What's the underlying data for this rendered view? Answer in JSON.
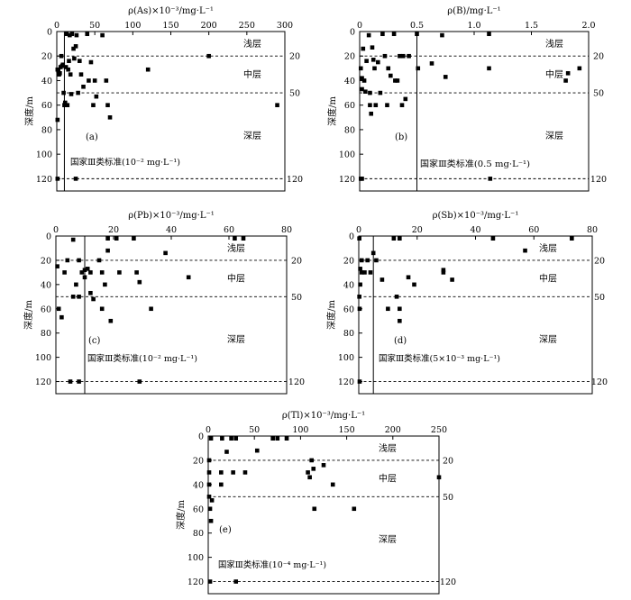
{
  "chart_data": [
    {
      "type": "scatter",
      "id": "a",
      "panel_label": "(a)",
      "xlabel": "ρ(As)×10⁻³/mg·L⁻¹",
      "ylabel": "深度/m",
      "xlim": [
        0,
        300
      ],
      "ylim": [
        0,
        130
      ],
      "xticks": [
        "0",
        "50",
        "100",
        "150",
        "200",
        "250",
        "300"
      ],
      "xtick_values": [
        0,
        50,
        100,
        150,
        200,
        250,
        300
      ],
      "yticks": [
        "0",
        "20",
        "40",
        "60",
        "80",
        "100",
        "120"
      ],
      "ytick_values": [
        0,
        20,
        40,
        60,
        80,
        100,
        120
      ],
      "y_inverted": true,
      "zone_lines": [
        20,
        50,
        120
      ],
      "zone_line_labels": [
        "20",
        "50",
        "120"
      ],
      "zones": [
        "浅层",
        "中层",
        "深层"
      ],
      "standard_x": 10,
      "standard_label": "国家Ⅲ类标准(10⁻² mg·L⁻¹)",
      "points": [
        [
          1,
          31
        ],
        [
          2,
          32
        ],
        [
          3,
          35
        ],
        [
          4,
          34
        ],
        [
          5,
          29
        ],
        [
          6,
          20
        ],
        [
          7,
          28
        ],
        [
          8,
          27
        ],
        [
          9,
          50
        ],
        [
          10,
          60
        ],
        [
          11,
          58
        ],
        [
          12,
          29
        ],
        [
          13,
          2
        ],
        [
          14,
          60
        ],
        [
          15,
          31
        ],
        [
          16,
          24
        ],
        [
          17,
          3
        ],
        [
          18,
          35
        ],
        [
          19,
          51
        ],
        [
          20,
          2
        ],
        [
          22,
          14
        ],
        [
          23,
          22
        ],
        [
          25,
          12
        ],
        [
          26,
          3
        ],
        [
          28,
          50
        ],
        [
          30,
          24
        ],
        [
          32,
          35
        ],
        [
          35,
          45
        ],
        [
          40,
          2
        ],
        [
          42,
          40
        ],
        [
          45,
          25
        ],
        [
          48,
          60
        ],
        [
          50,
          40
        ],
        [
          52,
          53
        ],
        [
          60,
          3
        ],
        [
          65,
          40
        ],
        [
          67,
          60
        ],
        [
          70,
          70
        ],
        [
          120,
          31
        ],
        [
          200,
          20
        ],
        [
          290,
          60
        ],
        [
          1,
          72
        ],
        [
          1,
          120
        ],
        [
          25,
          120
        ]
      ]
    },
    {
      "type": "scatter",
      "id": "b",
      "panel_label": "(b)",
      "xlabel": "ρ(B)/mg·L⁻¹",
      "ylabel": "深度/m",
      "xlim": [
        0,
        2.0
      ],
      "ylim": [
        0,
        130
      ],
      "xticks": [
        "0",
        "0.5",
        "1.0",
        "1.5",
        "2.0"
      ],
      "xtick_values": [
        0,
        0.5,
        1.0,
        1.5,
        2.0
      ],
      "yticks": [
        "0",
        "20",
        "40",
        "60",
        "80",
        "100",
        "120"
      ],
      "ytick_values": [
        0,
        20,
        40,
        60,
        80,
        100,
        120
      ],
      "y_inverted": true,
      "zone_lines": [
        20,
        50,
        120
      ],
      "zone_line_labels": [
        "20",
        "50",
        "120"
      ],
      "zones": [
        "浅层",
        "中层",
        "深层"
      ],
      "standard_x": 0.5,
      "standard_label": "国家Ⅲ类标准(0.5 mg·L⁻¹)",
      "points": [
        [
          0.01,
          30
        ],
        [
          0.02,
          38
        ],
        [
          0.02,
          47
        ],
        [
          0.03,
          14
        ],
        [
          0.04,
          40
        ],
        [
          0.05,
          49
        ],
        [
          0.06,
          24
        ],
        [
          0.08,
          3
        ],
        [
          0.09,
          50
        ],
        [
          0.09,
          60
        ],
        [
          0.1,
          67
        ],
        [
          0.11,
          13
        ],
        [
          0.12,
          23
        ],
        [
          0.13,
          30
        ],
        [
          0.14,
          60
        ],
        [
          0.16,
          25
        ],
        [
          0.18,
          50
        ],
        [
          0.2,
          2
        ],
        [
          0.22,
          20
        ],
        [
          0.24,
          60
        ],
        [
          0.25,
          30
        ],
        [
          0.27,
          36
        ],
        [
          0.3,
          2
        ],
        [
          0.31,
          40
        ],
        [
          0.33,
          40
        ],
        [
          0.35,
          20
        ],
        [
          0.37,
          60
        ],
        [
          0.38,
          20
        ],
        [
          0.4,
          55
        ],
        [
          0.43,
          20
        ],
        [
          0.5,
          2
        ],
        [
          0.51,
          30
        ],
        [
          0.63,
          26
        ],
        [
          0.72,
          3
        ],
        [
          0.75,
          37
        ],
        [
          1.13,
          2
        ],
        [
          1.13,
          30
        ],
        [
          1.8,
          40
        ],
        [
          1.82,
          34
        ],
        [
          1.92,
          30
        ],
        [
          0.01,
          120
        ],
        [
          0.02,
          120
        ],
        [
          1.14,
          120
        ]
      ]
    },
    {
      "type": "scatter",
      "id": "c",
      "panel_label": "(c)",
      "xlabel": "ρ(Pb)×10⁻³/mg·L⁻¹",
      "ylabel": "深度/m",
      "xlim": [
        0,
        80
      ],
      "ylim": [
        0,
        130
      ],
      "xticks": [
        "0",
        "20",
        "40",
        "60",
        "80"
      ],
      "xtick_values": [
        0,
        20,
        40,
        60,
        80
      ],
      "yticks": [
        "0",
        "20",
        "40",
        "60",
        "80",
        "100",
        "120"
      ],
      "ytick_values": [
        0,
        20,
        40,
        60,
        80,
        100,
        120
      ],
      "y_inverted": true,
      "zone_lines": [
        20,
        50,
        120
      ],
      "zone_line_labels": [
        "20",
        "50",
        "120"
      ],
      "zones": [
        "浅层",
        "中层",
        "深层"
      ],
      "standard_x": 10,
      "standard_label": "国家Ⅲ类标准(10⁻² mg·L⁻¹)",
      "points": [
        [
          0.5,
          25
        ],
        [
          1,
          60
        ],
        [
          2,
          67
        ],
        [
          3,
          30
        ],
        [
          4,
          20
        ],
        [
          6,
          3
        ],
        [
          6,
          50
        ],
        [
          7,
          40
        ],
        [
          8,
          20
        ],
        [
          8,
          50
        ],
        [
          9,
          30
        ],
        [
          10,
          28
        ],
        [
          10,
          34
        ],
        [
          11,
          27
        ],
        [
          12,
          30
        ],
        [
          12,
          47
        ],
        [
          13,
          52
        ],
        [
          15,
          20
        ],
        [
          16,
          30
        ],
        [
          16,
          60
        ],
        [
          17,
          40
        ],
        [
          18,
          2
        ],
        [
          18,
          12
        ],
        [
          19,
          70
        ],
        [
          21,
          2
        ],
        [
          22,
          30
        ],
        [
          27,
          2
        ],
        [
          28,
          30
        ],
        [
          29,
          38
        ],
        [
          33,
          60
        ],
        [
          38,
          14
        ],
        [
          46,
          34
        ],
        [
          62,
          2
        ],
        [
          65,
          2
        ],
        [
          5,
          120
        ],
        [
          8,
          120
        ],
        [
          29,
          120
        ]
      ]
    },
    {
      "type": "scatter",
      "id": "d",
      "panel_label": "(d)",
      "xlabel": "ρ(Sb)×10⁻³/mg·L⁻¹",
      "ylabel": "深度/m",
      "xlim": [
        0,
        80
      ],
      "ylim": [
        0,
        130
      ],
      "xticks": [
        "0",
        "20",
        "40",
        "60",
        "80"
      ],
      "xtick_values": [
        0,
        20,
        40,
        60,
        80
      ],
      "yticks": [
        "0",
        "20",
        "40",
        "60",
        "80",
        "100",
        "120"
      ],
      "ytick_values": [
        0,
        20,
        40,
        60,
        80,
        100,
        120
      ],
      "y_inverted": true,
      "zone_lines": [
        20,
        50,
        120
      ],
      "zone_line_labels": [
        "20",
        "50",
        "120"
      ],
      "zones": [
        "浅层",
        "中层",
        "深层"
      ],
      "standard_x": 5,
      "standard_label": "国家Ⅲ类标准(5×10⁻³ mg·L⁻¹)",
      "points": [
        [
          0.2,
          2
        ],
        [
          0.2,
          50
        ],
        [
          0.3,
          60
        ],
        [
          0.5,
          40
        ],
        [
          0.5,
          27
        ],
        [
          1,
          30
        ],
        [
          1,
          20
        ],
        [
          2,
          30
        ],
        [
          3,
          20
        ],
        [
          4,
          30
        ],
        [
          5,
          14
        ],
        [
          6,
          20
        ],
        [
          8,
          36
        ],
        [
          10,
          60
        ],
        [
          12,
          2
        ],
        [
          13,
          50
        ],
        [
          14,
          2
        ],
        [
          14,
          60
        ],
        [
          14,
          70
        ],
        [
          17,
          34
        ],
        [
          19,
          40
        ],
        [
          29,
          28
        ],
        [
          29,
          30
        ],
        [
          32,
          36
        ],
        [
          46,
          2
        ],
        [
          57,
          12
        ],
        [
          73,
          2
        ],
        [
          0.3,
          120
        ]
      ]
    },
    {
      "type": "scatter",
      "id": "e",
      "panel_label": "(e)",
      "xlabel": "ρ(Tl)×10⁻³/mg·L⁻¹",
      "ylabel": "深度/m",
      "xlim": [
        0,
        250
      ],
      "ylim": [
        0,
        130
      ],
      "xticks": [
        "0",
        "50",
        "100",
        "150",
        "200",
        "250"
      ],
      "xtick_values": [
        0,
        50,
        100,
        150,
        200,
        250
      ],
      "yticks": [
        "0",
        "20",
        "40",
        "60",
        "80",
        "100",
        "120"
      ],
      "ytick_values": [
        0,
        20,
        40,
        60,
        80,
        100,
        120
      ],
      "y_inverted": true,
      "zone_lines": [
        20,
        50,
        120
      ],
      "zone_line_labels": [
        "20",
        "50",
        "120"
      ],
      "zones": [
        "浅层",
        "中层",
        "深层"
      ],
      "standard_x": null,
      "standard_label": "国家Ⅲ类标准(10⁻⁴ mg·L⁻¹)",
      "points": [
        [
          1,
          20
        ],
        [
          1,
          30
        ],
        [
          1,
          40
        ],
        [
          1,
          50
        ],
        [
          2,
          60
        ],
        [
          3,
          2
        ],
        [
          3,
          70
        ],
        [
          4,
          53
        ],
        [
          14,
          30
        ],
        [
          14,
          40
        ],
        [
          15,
          2
        ],
        [
          20,
          13
        ],
        [
          25,
          2
        ],
        [
          27,
          30
        ],
        [
          30,
          2
        ],
        [
          40,
          30
        ],
        [
          53,
          12
        ],
        [
          70,
          2
        ],
        [
          75,
          2
        ],
        [
          85,
          2
        ],
        [
          108,
          30
        ],
        [
          110,
          34
        ],
        [
          112,
          20
        ],
        [
          114,
          27
        ],
        [
          115,
          60
        ],
        [
          125,
          24
        ],
        [
          135,
          40
        ],
        [
          158,
          60
        ],
        [
          250,
          34
        ],
        [
          2,
          120
        ],
        [
          30,
          120
        ]
      ]
    }
  ]
}
